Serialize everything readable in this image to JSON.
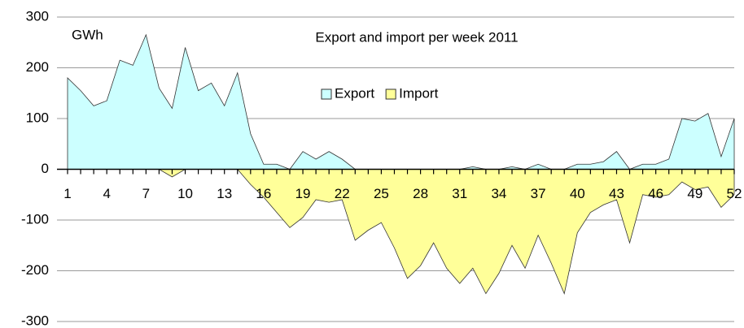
{
  "chart_data": {
    "type": "area",
    "title": "Export and import per week 2011",
    "y_label": "GWh",
    "categories": [
      1,
      null,
      null,
      4,
      null,
      null,
      7,
      null,
      null,
      10,
      null,
      null,
      13,
      null,
      null,
      16,
      null,
      null,
      19,
      null,
      null,
      22,
      null,
      null,
      25,
      null,
      null,
      28,
      null,
      null,
      31,
      null,
      null,
      34,
      null,
      null,
      37,
      null,
      null,
      40,
      null,
      null,
      43,
      null,
      null,
      46,
      null,
      null,
      49,
      null,
      null,
      52
    ],
    "series": [
      {
        "name": "Export",
        "color": "#ccffff",
        "values": [
          180,
          155,
          125,
          135,
          215,
          205,
          265,
          160,
          120,
          240,
          155,
          170,
          125,
          190,
          70,
          10,
          10,
          0,
          35,
          20,
          35,
          20,
          0,
          0,
          0,
          0,
          0,
          0,
          0,
          0,
          0,
          5,
          0,
          0,
          5,
          0,
          10,
          0,
          0,
          10,
          10,
          15,
          35,
          0,
          10,
          10,
          20,
          100,
          95,
          110,
          25,
          100
        ]
      },
      {
        "name": "Import",
        "color": "#ffff99",
        "values": [
          0,
          0,
          0,
          0,
          0,
          0,
          0,
          0,
          -15,
          0,
          0,
          0,
          0,
          0,
          -30,
          -55,
          -85,
          -115,
          -95,
          -60,
          -65,
          -60,
          -140,
          -120,
          -105,
          -155,
          -215,
          -190,
          -145,
          -195,
          -225,
          -195,
          -245,
          -205,
          -150,
          -195,
          -130,
          -185,
          -245,
          -125,
          -85,
          -70,
          -60,
          -145,
          -50,
          -55,
          -50,
          -25,
          -40,
          -35,
          -75,
          -50
        ]
      }
    ],
    "ylim": [
      -300,
      300
    ],
    "yticks": [
      -300,
      -200,
      -100,
      0,
      100,
      200,
      300
    ],
    "grid": true,
    "legend": "top"
  }
}
